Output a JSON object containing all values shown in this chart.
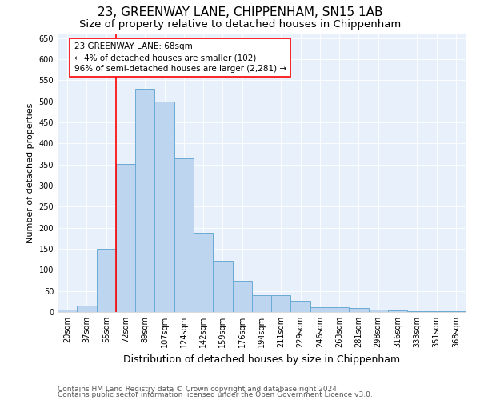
{
  "title1": "23, GREENWAY LANE, CHIPPENHAM, SN15 1AB",
  "title2": "Size of property relative to detached houses in Chippenham",
  "xlabel": "Distribution of detached houses by size in Chippenham",
  "ylabel": "Number of detached properties",
  "categories": [
    "20sqm",
    "37sqm",
    "55sqm",
    "72sqm",
    "89sqm",
    "107sqm",
    "124sqm",
    "142sqm",
    "159sqm",
    "176sqm",
    "194sqm",
    "211sqm",
    "229sqm",
    "246sqm",
    "263sqm",
    "281sqm",
    "298sqm",
    "316sqm",
    "333sqm",
    "351sqm",
    "368sqm"
  ],
  "values": [
    5,
    15,
    150,
    352,
    530,
    500,
    365,
    188,
    122,
    75,
    40,
    40,
    27,
    12,
    12,
    10,
    5,
    3,
    2,
    1,
    1
  ],
  "bar_color": "#bdd5ee",
  "bar_edge_color": "#6aaad4",
  "vline_index": 2.5,
  "vline_color": "red",
  "annotation_text": "23 GREENWAY LANE: 68sqm\n← 4% of detached houses are smaller (102)\n96% of semi-detached houses are larger (2,281) →",
  "annotation_box_color": "white",
  "annotation_box_edge_color": "red",
  "ylim": [
    0,
    660
  ],
  "yticks": [
    0,
    50,
    100,
    150,
    200,
    250,
    300,
    350,
    400,
    450,
    500,
    550,
    600,
    650
  ],
  "footer1": "Contains HM Land Registry data © Crown copyright and database right 2024.",
  "footer2": "Contains public sector information licensed under the Open Government Licence v3.0.",
  "plot_bg_color": "#e8f0fb",
  "title1_fontsize": 11,
  "title2_fontsize": 9.5,
  "xlabel_fontsize": 9,
  "ylabel_fontsize": 8,
  "tick_fontsize": 7,
  "footer_fontsize": 6.5,
  "annotation_fontsize": 7.5
}
